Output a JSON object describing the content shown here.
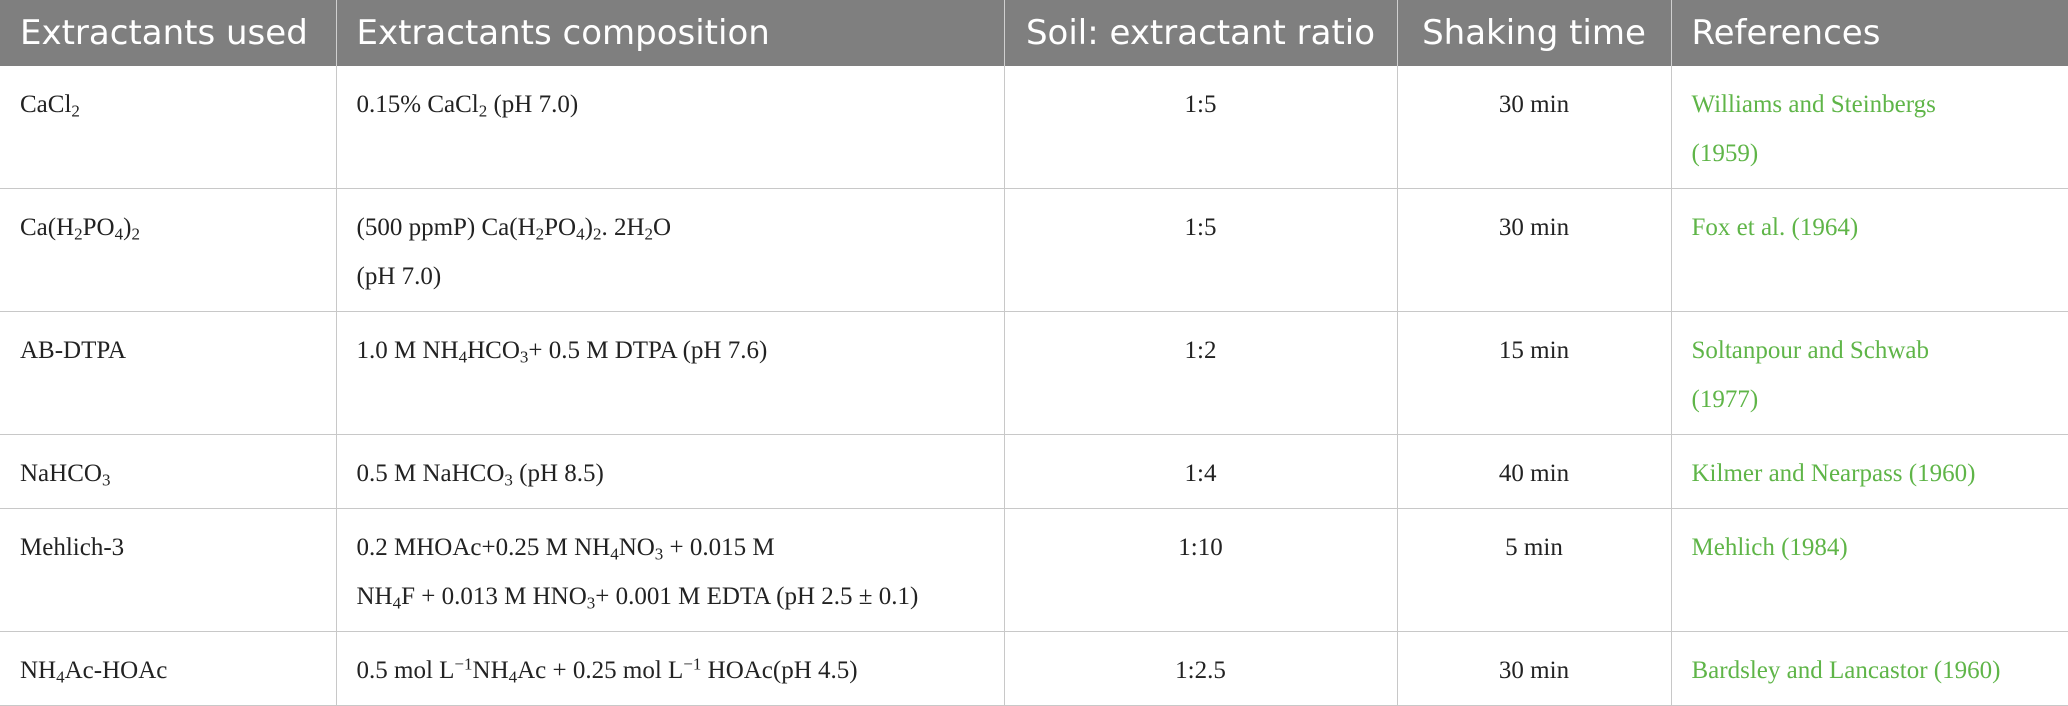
{
  "headers": {
    "extractant": "Extractants used",
    "composition": "Extractants composition",
    "ratio": "Soil: extractant ratio",
    "time": "Shaking time",
    "references": "References"
  },
  "rows": [
    {
      "extractant": [
        "CaCl",
        "2",
        ""
      ],
      "composition": [
        "0.15% CaCl",
        "2",
        " (pH 7.0)"
      ],
      "ratio": "1:5",
      "time": "30 min",
      "ref_line1": "Williams and Steinbergs",
      "ref_line2": "(1959)"
    },
    {
      "extractant": [
        "Ca(H",
        "2",
        "PO",
        "4",
        ")",
        "2"
      ],
      "composition": [
        "(500 ppmP) Ca(H",
        "2",
        "PO",
        "4",
        ")",
        "2",
        ". 2H",
        "2",
        "O",
        "(pH 7.0)"
      ],
      "ratio": "1:5",
      "time": "30 min",
      "ref_line1": "Fox et al. (1964)"
    },
    {
      "extractant": "AB-DTPA",
      "composition": [
        "1.0 M NH",
        "4",
        "HCO",
        "3",
        "+ 0.5 M DTPA (pH 7.6)"
      ],
      "ratio": "1:2",
      "time": "15 min",
      "ref_line1": "Soltanpour and Schwab",
      "ref_line2": "(1977)"
    },
    {
      "extractant": [
        "NaHCO",
        "3"
      ],
      "composition": [
        "0.5 M NaHCO",
        "3",
        " (pH 8.5)"
      ],
      "ratio": "1:4",
      "time": "40 min",
      "ref_line1": "Kilmer and Nearpass (1960)"
    },
    {
      "extractant": "Mehlich-3",
      "composition": [
        "0.2 MHOAc+0.25 M NH",
        "4",
        "NO",
        "3",
        " + 0.015 M",
        "NH",
        "4",
        "F + 0.013 M HNO",
        "3",
        "+ 0.001 M EDTA (pH 2.5 ± 0.1)"
      ],
      "ratio": "1:10",
      "time": "5 min",
      "ref_line1": "Mehlich (1984)"
    },
    {
      "extractant": [
        "NH",
        "4",
        "Ac-HOAc"
      ],
      "composition": [
        "0.5 mol L",
        "−1",
        "NH",
        "4",
        "Ac + 0.25 mol L",
        "−1",
        " HOAc(pH 4.5)"
      ],
      "ratio": "1:2.5",
      "time": "30 min",
      "ref_line1": "Bardsley and Lancastor (1960)"
    }
  ]
}
